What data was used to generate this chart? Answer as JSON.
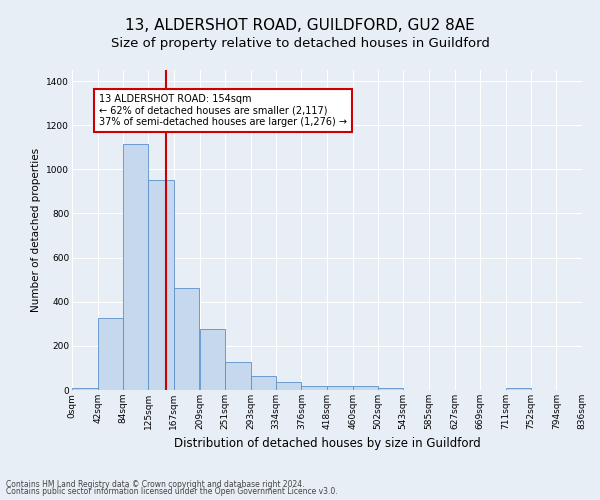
{
  "title1": "13, ALDERSHOT ROAD, GUILDFORD, GU2 8AE",
  "title2": "Size of property relative to detached houses in Guildford",
  "xlabel": "Distribution of detached houses by size in Guildford",
  "ylabel": "Number of detached properties",
  "footnote1": "Contains HM Land Registry data © Crown copyright and database right 2024.",
  "footnote2": "Contains public sector information licensed under the Open Government Licence v3.0.",
  "annotation_line1": "13 ALDERSHOT ROAD: 154sqm",
  "annotation_line2": "← 62% of detached houses are smaller (2,117)",
  "annotation_line3": "37% of semi-detached houses are larger (1,276) →",
  "bar_color": "#c5d8ee",
  "bar_edge_color": "#5b8fc9",
  "vline_color": "#cc0000",
  "vline_x": 154,
  "bins": [
    0,
    42,
    84,
    125,
    167,
    209,
    251,
    293,
    334,
    376,
    418,
    460,
    502,
    543,
    585,
    627,
    669,
    711,
    752,
    794,
    836
  ],
  "bin_labels": [
    "0sqm",
    "42sqm",
    "84sqm",
    "125sqm",
    "167sqm",
    "209sqm",
    "251sqm",
    "293sqm",
    "334sqm",
    "376sqm",
    "418sqm",
    "460sqm",
    "502sqm",
    "543sqm",
    "585sqm",
    "627sqm",
    "669sqm",
    "711sqm",
    "752sqm",
    "794sqm",
    "836sqm"
  ],
  "counts": [
    8,
    325,
    1115,
    950,
    460,
    275,
    125,
    65,
    38,
    20,
    20,
    20,
    10,
    0,
    0,
    0,
    0,
    10,
    0,
    0
  ],
  "ylim": [
    0,
    1450
  ],
  "yticks": [
    0,
    200,
    400,
    600,
    800,
    1000,
    1200,
    1400
  ],
  "background_color": "#e8eef5",
  "grid_color": "#ffffff",
  "title1_fontsize": 11,
  "title2_fontsize": 9.5,
  "xlabel_fontsize": 8.5,
  "ylabel_fontsize": 7.5,
  "tick_fontsize": 6.5,
  "annotation_fontsize": 7,
  "annotation_box_color": "#ffffff",
  "annotation_box_edge": "#cc0000",
  "footnote_fontsize": 5.5,
  "footnote_color": "#444444"
}
